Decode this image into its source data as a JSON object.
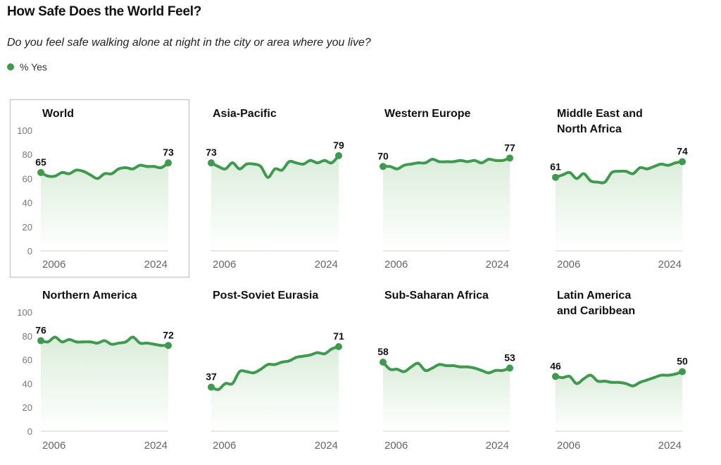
{
  "header": {
    "title": "How Safe Does the World Feel?",
    "subtitle": "Do you feel safe walking alone at night in the city or area where you live?",
    "legend_label": "% Yes"
  },
  "colors": {
    "line": "#3f9a4f",
    "fill": "#e3f1e3",
    "highlight_border": "#cccccc"
  },
  "chart_data": {
    "type": "line",
    "layout": "small-multiples",
    "x": [
      2006,
      2007,
      2008,
      2009,
      2010,
      2011,
      2012,
      2013,
      2014,
      2015,
      2016,
      2017,
      2018,
      2019,
      2020,
      2021,
      2022,
      2023,
      2024
    ],
    "x_tick_labels": [
      "2006",
      "2024"
    ],
    "y_tick_labels": [
      "100",
      "80",
      "60",
      "40",
      "20",
      "0"
    ],
    "ylim": [
      0,
      100
    ],
    "grid": false,
    "highlighted_panel": "World",
    "panels": [
      {
        "title": [
          "World"
        ],
        "start_label": "65",
        "end_label": "73",
        "values": [
          65,
          62,
          62,
          65,
          64,
          67,
          66,
          63,
          60,
          64,
          64,
          68,
          69,
          68,
          71,
          70,
          70,
          69,
          73
        ]
      },
      {
        "title": [
          "Asia-Pacific"
        ],
        "start_label": "73",
        "end_label": "79",
        "values": [
          73,
          70,
          68,
          73,
          68,
          72,
          72,
          70,
          61,
          68,
          67,
          74,
          73,
          72,
          75,
          73,
          75,
          73,
          79
        ]
      },
      {
        "title": [
          "Western Europe"
        ],
        "start_label": "70",
        "end_label": "77",
        "values": [
          70,
          70,
          68,
          71,
          72,
          73,
          73,
          76,
          74,
          74,
          74,
          75,
          74,
          75,
          73,
          76,
          75,
          75,
          77
        ]
      },
      {
        "title": [
          "Middle East and",
          "North Africa"
        ],
        "start_label": "61",
        "end_label": "74",
        "values": [
          61,
          63,
          65,
          60,
          64,
          58,
          57,
          57,
          65,
          66,
          66,
          64,
          69,
          68,
          70,
          72,
          71,
          73,
          74
        ]
      },
      {
        "title": [
          "Northern America"
        ],
        "start_label": "76",
        "end_label": "72",
        "values": [
          76,
          75,
          79,
          75,
          77,
          75,
          75,
          75,
          74,
          76,
          73,
          74,
          75,
          79,
          74,
          74,
          73,
          72,
          72
        ]
      },
      {
        "title": [
          "Post-Soviet Eurasia"
        ],
        "start_label": "37",
        "end_label": "71",
        "values": [
          37,
          35,
          40,
          40,
          50,
          50,
          49,
          52,
          56,
          56,
          58,
          59,
          62,
          63,
          64,
          66,
          65,
          69,
          71
        ]
      },
      {
        "title": [
          "Sub-Saharan Africa"
        ],
        "start_label": "58",
        "end_label": "53",
        "values": [
          58,
          52,
          52,
          50,
          54,
          57,
          51,
          53,
          56,
          55,
          55,
          54,
          54,
          53,
          51,
          49,
          51,
          51,
          53
        ]
      },
      {
        "title": [
          "Latin America",
          "and Caribbean"
        ],
        "start_label": "46",
        "end_label": "50",
        "values": [
          46,
          45,
          46,
          40,
          44,
          47,
          42,
          42,
          41,
          41,
          40,
          38,
          41,
          43,
          45,
          47,
          47,
          48,
          50
        ]
      }
    ]
  }
}
